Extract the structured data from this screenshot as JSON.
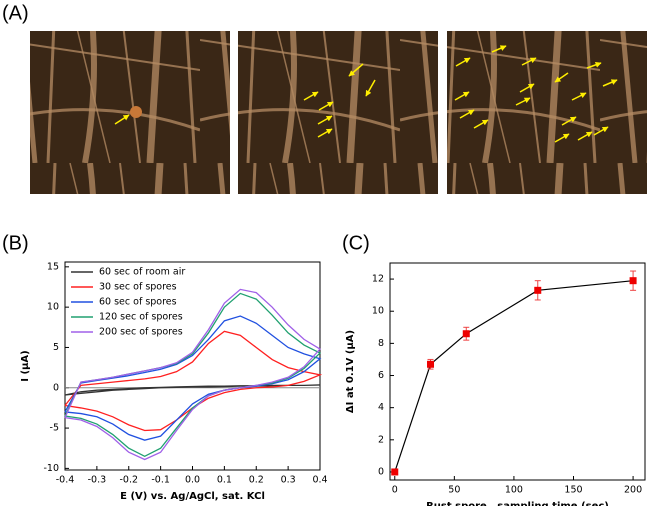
{
  "panels": [
    "(A)",
    "(B)",
    "(C)"
  ],
  "chart_data": [
    {
      "type": "line",
      "xlabel": "E (V) vs. Ag/AgCl, sat. KCl",
      "ylabel": "I (μA)",
      "x": [
        -0.4,
        -0.35,
        -0.3,
        -0.25,
        -0.2,
        -0.15,
        -0.1,
        -0.05,
        0,
        0.05,
        0.1,
        0.15,
        0.2,
        0.25,
        0.3,
        0.35,
        0.4,
        0.4,
        0.35,
        0.3,
        0.25,
        0.2,
        0.15,
        0.1,
        0.05,
        0,
        -0.05,
        -0.1,
        -0.15,
        -0.2,
        -0.25,
        -0.3,
        -0.35,
        -0.4
      ],
      "series": [
        {
          "name": "60 sec of room air",
          "color": "#333333",
          "values": [
            -0.9,
            -0.5,
            -0.3,
            -0.2,
            -0.1,
            0,
            0.05,
            0.1,
            0.15,
            0.2,
            0.2,
            0.25,
            0.25,
            0.3,
            0.3,
            0.3,
            0.35,
            0.35,
            0.3,
            0.3,
            0.25,
            0.2,
            0.2,
            0.15,
            0.1,
            0.1,
            0.05,
            0,
            -0.1,
            -0.2,
            -0.3,
            -0.5,
            -0.7,
            -0.9
          ]
        },
        {
          "name": "30 sec of spores",
          "color": "#ff2020",
          "values": [
            -2.2,
            0.3,
            0.5,
            0.7,
            0.9,
            1.1,
            1.4,
            2,
            3.2,
            5.5,
            7,
            6.5,
            5,
            3.5,
            2.5,
            2,
            1.6,
            1.6,
            0.8,
            0.3,
            0.1,
            0,
            -0.2,
            -0.6,
            -1.3,
            -2.5,
            -4,
            -5.2,
            -5.3,
            -4.6,
            -3.6,
            -2.9,
            -2.5,
            -2.2
          ]
        },
        {
          "name": "60 sec of spores",
          "color": "#2050e0",
          "values": [
            -3,
            0.6,
            0.9,
            1.2,
            1.5,
            1.9,
            2.3,
            2.9,
            4,
            6,
            8.3,
            8.9,
            8,
            6.5,
            5,
            4.2,
            3.6,
            3.6,
            2,
            1,
            0.5,
            0.2,
            0,
            -0.3,
            -0.8,
            -2,
            -4,
            -6,
            -6.5,
            -5.8,
            -4.5,
            -3.6,
            -3.2,
            -3
          ]
        },
        {
          "name": "120 sec of spores",
          "color": "#20a070",
          "values": [
            -3.5,
            0.7,
            1,
            1.3,
            1.7,
            2.1,
            2.5,
            3,
            4.2,
            6.8,
            10,
            11.7,
            11,
            9,
            6.8,
            5.3,
            4.3,
            4.3,
            2.4,
            1.2,
            0.6,
            0.3,
            0,
            -0.3,
            -1,
            -2.5,
            -5,
            -7.5,
            -8.5,
            -7.5,
            -5.8,
            -4.5,
            -3.8,
            -3.5
          ]
        },
        {
          "name": "200 sec of spores",
          "color": "#a060e8",
          "values": [
            -3.7,
            0.7,
            1,
            1.3,
            1.7,
            2.1,
            2.5,
            3.1,
            4.4,
            7.2,
            10.5,
            12.2,
            11.8,
            10,
            7.8,
            6,
            4.8,
            4.8,
            2.6,
            1.3,
            0.7,
            0.3,
            0,
            -0.3,
            -1,
            -2.7,
            -5.3,
            -8,
            -8.9,
            -8,
            -6.2,
            -4.8,
            -4,
            -3.7
          ]
        }
      ],
      "xlim": [
        -0.4,
        0.4
      ],
      "xticks": [
        -0.4,
        -0.3,
        -0.2,
        -0.1,
        {
          "value": 0,
          "label": "0.0"
        },
        0.1,
        0.2,
        0.3,
        0.4
      ],
      "ylim": [
        -10.2,
        15.6
      ],
      "yticks": [
        -10,
        -5,
        0,
        5,
        10,
        15
      ],
      "zero_line": true,
      "legend": "upper left"
    },
    {
      "type": "line",
      "xlabel": "Rust spore   sampling time (sec)",
      "ylabel": "ΔI at 0.1V (μA)",
      "x": [
        0,
        30,
        60,
        120,
        200
      ],
      "series": [
        {
          "color": "#000000",
          "marker": "square",
          "marker_color": "#ee0000",
          "error_color": "#ee4444",
          "values": [
            0,
            6.7,
            8.6,
            11.3,
            11.9
          ],
          "errors": [
            0.15,
            0.3,
            0.4,
            0.6,
            0.6
          ]
        }
      ],
      "xlim": [
        -4,
        210
      ],
      "xticks": [
        0,
        50,
        100,
        150,
        200
      ],
      "ylim": [
        -0.5,
        13
      ],
      "yticks": [
        0,
        2,
        4,
        6,
        8,
        10,
        12
      ]
    }
  ]
}
